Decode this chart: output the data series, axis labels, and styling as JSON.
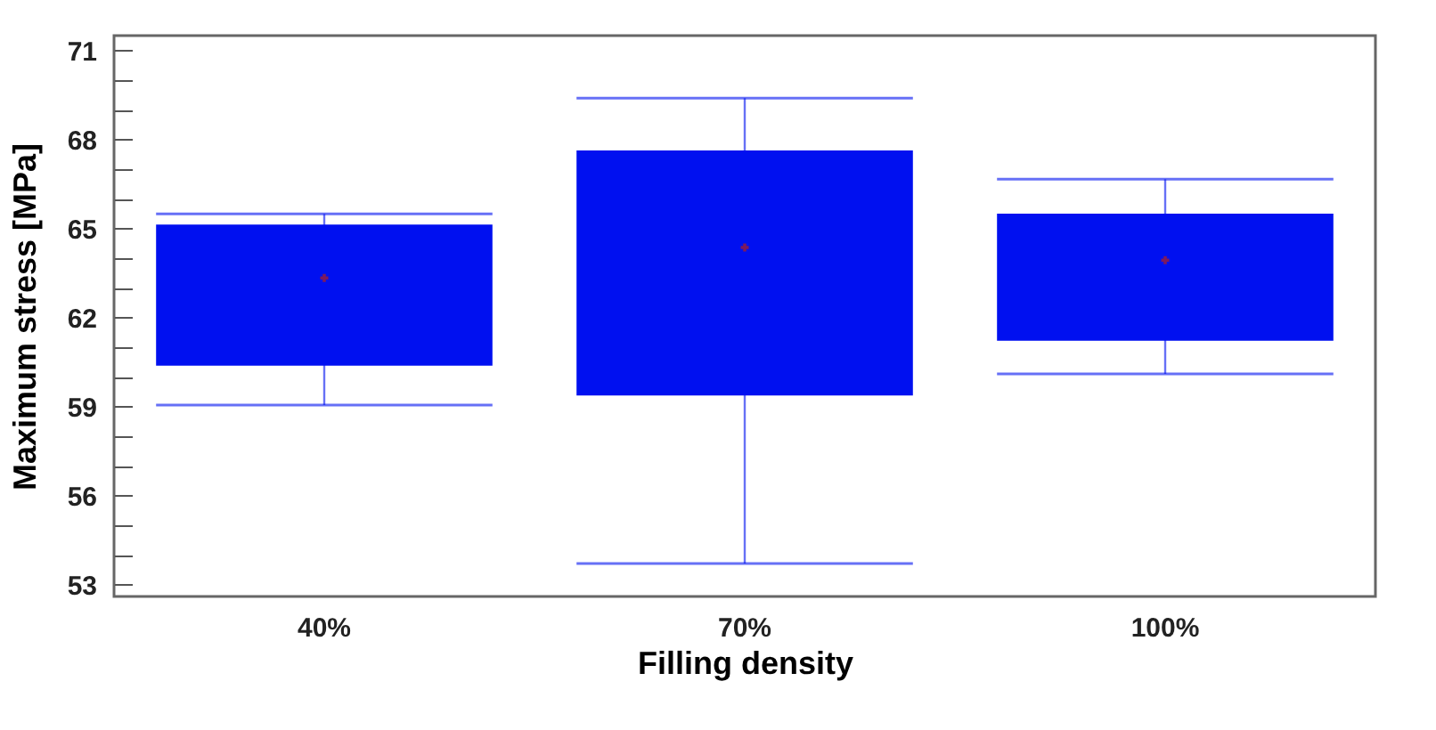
{
  "chart_data": {
    "type": "box",
    "xlabel": "Filling density",
    "ylabel": "Maximum stress [MPa]",
    "categories": [
      "40%",
      "70%",
      "100%"
    ],
    "series": [
      {
        "color": "#0010f0",
        "boxes": [
          {
            "low": 59.05,
            "q1": 60.38,
            "q3": 65.13,
            "high": 65.49,
            "mean": 63.33
          },
          {
            "low": 53.71,
            "q1": 59.37,
            "q3": 67.63,
            "high": 69.39,
            "mean": 64.36
          },
          {
            "low": 60.1,
            "q1": 61.22,
            "q3": 65.5,
            "high": 66.66,
            "mean": 63.93
          }
        ]
      }
    ],
    "ylim": [
      52.6,
      71.5
    ],
    "yticks": [
      53,
      {
        "value": 54,
        "label": null
      },
      {
        "value": 55,
        "label": null
      },
      56,
      {
        "value": 57,
        "label": null
      },
      {
        "value": 58,
        "label": null
      },
      59,
      {
        "value": 60,
        "label": null
      },
      {
        "value": 61,
        "label": null
      },
      62,
      {
        "value": 63,
        "label": null
      },
      {
        "value": 64,
        "label": null
      },
      65,
      {
        "value": 66,
        "label": null
      },
      {
        "value": 67,
        "label": null
      },
      68,
      {
        "value": 69,
        "label": null
      },
      {
        "value": 70,
        "label": null
      },
      71
    ],
    "grid": false
  }
}
